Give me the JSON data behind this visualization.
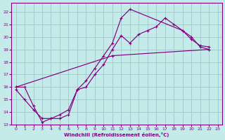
{
  "xlabel": "Windchill (Refroidissement éolien,°C)",
  "bg_color": "#c5eaea",
  "grid_color": "#a0c8c8",
  "line_color": "#800080",
  "xlim": [
    -0.5,
    23.5
  ],
  "ylim": [
    13,
    22.7
  ],
  "xticks": [
    0,
    1,
    2,
    3,
    4,
    5,
    6,
    7,
    8,
    9,
    10,
    11,
    12,
    13,
    14,
    15,
    16,
    17,
    18,
    19,
    20,
    21,
    22,
    23
  ],
  "yticks": [
    13,
    14,
    15,
    16,
    17,
    18,
    19,
    20,
    21,
    22
  ],
  "line1_x": [
    0,
    1,
    2,
    3,
    4,
    5,
    6,
    7,
    8,
    9,
    10,
    11,
    12,
    13,
    19,
    20,
    21,
    22
  ],
  "line1_y": [
    16.0,
    16.0,
    14.5,
    13.2,
    13.5,
    13.5,
    13.8,
    15.8,
    16.5,
    17.5,
    18.5,
    19.5,
    21.5,
    22.2,
    20.5,
    20.0,
    19.2,
    19.0
  ],
  "line2_x": [
    0,
    1,
    2,
    3,
    4,
    5,
    6,
    7,
    8,
    9,
    10,
    11,
    12,
    13,
    14,
    15,
    16,
    17,
    18,
    19,
    20,
    21,
    22
  ],
  "line2_y": [
    15.8,
    15.0,
    14.2,
    13.5,
    13.5,
    13.8,
    14.2,
    15.8,
    16.0,
    17.0,
    17.8,
    19.0,
    20.1,
    19.5,
    20.2,
    20.5,
    20.8,
    21.5,
    21.0,
    20.5,
    19.8,
    19.3,
    19.2
  ],
  "line3_x": [
    0,
    11,
    22
  ],
  "line3_y": [
    16.0,
    18.5,
    19.0
  ]
}
